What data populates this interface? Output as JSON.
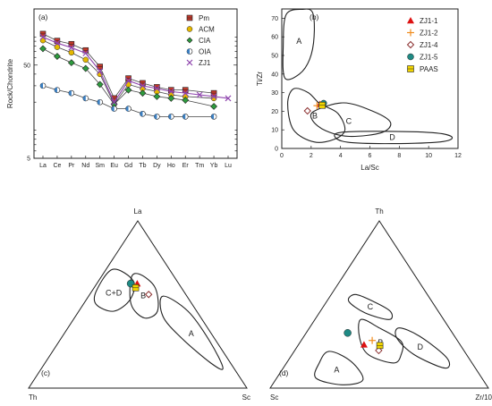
{
  "chart_data": [
    {
      "panel": "(a)",
      "type": "line",
      "ylabel": "Rock/Chondrite",
      "y_scale": "log",
      "ylim": [
        5,
        200
      ],
      "y_ticks": [
        "5",
        "50"
      ],
      "categories": [
        "La",
        "Ce",
        "Pr",
        "Nd",
        "Sm",
        "Eu",
        "Gd",
        "Tb",
        "Dy",
        "Ho",
        "Er",
        "Tm",
        "Yb",
        "Lu"
      ],
      "grid": false,
      "legend_position": "top-right",
      "series": [
        {
          "name": "Pm",
          "color": "#c0392b",
          "marker": "square",
          "values": [
            108,
            91,
            84,
            72,
            48,
            22,
            36,
            32,
            29,
            27,
            27,
            null,
            25,
            null
          ]
        },
        {
          "name": "ACM",
          "color": "#e5b800",
          "marker": "circle",
          "values": [
            92,
            78,
            68,
            57,
            40,
            19,
            31,
            28,
            26,
            24,
            23,
            null,
            22,
            null
          ]
        },
        {
          "name": "CIA",
          "color": "#2e9b3e",
          "marker": "diamond",
          "values": [
            75,
            62,
            53,
            46,
            31,
            19,
            27,
            25,
            23,
            22,
            21,
            null,
            18,
            null
          ]
        },
        {
          "name": "OIA",
          "color": "#3a7fc2",
          "marker": "circle-half",
          "values": [
            30,
            27,
            25,
            22,
            20,
            17,
            17,
            15,
            14,
            14,
            14,
            null,
            14,
            null
          ]
        },
        {
          "name": "ZJ1",
          "color": "#8e44ad",
          "marker": "cross",
          "values": [
            100,
            86,
            77,
            67,
            43,
            20,
            34,
            30,
            28,
            26,
            25,
            24,
            23,
            22
          ]
        }
      ]
    },
    {
      "panel": "(b)",
      "type": "scatter",
      "xlabel": "La/Sc",
      "ylabel": "Ti/Zr",
      "xlim": [
        0,
        12
      ],
      "ylim": [
        0,
        75
      ],
      "x_ticks": [
        0,
        2,
        4,
        6,
        8,
        10,
        12
      ],
      "y_ticks": [
        0,
        10,
        20,
        30,
        40,
        50,
        60,
        70
      ],
      "legend_position": "top-right",
      "fields": [
        {
          "label": "A",
          "polygon": [
            [
              0.2,
              38
            ],
            [
              0.1,
              55
            ],
            [
              0.3,
              72
            ],
            [
              1.4,
              74.8
            ],
            [
              2.1,
              73
            ],
            [
              2.2,
              60
            ],
            [
              1.9,
              48
            ],
            [
              1.2,
              40
            ]
          ]
        },
        {
          "label": "B",
          "polygon": [
            [
              0.8,
              32
            ],
            [
              0.4,
              24
            ],
            [
              0.8,
              10
            ],
            [
              2.2,
              3.5
            ],
            [
              3.6,
              5
            ],
            [
              4.3,
              10
            ],
            [
              3.8,
              19
            ],
            [
              2.6,
              24
            ],
            [
              1.8,
              30
            ]
          ]
        },
        {
          "label": "C",
          "polygon": [
            [
              2.2,
              20
            ],
            [
              4.2,
              24.5
            ],
            [
              6.2,
              20
            ],
            [
              7.4,
              14
            ],
            [
              6.8,
              8.5
            ],
            [
              4.6,
              6.5
            ],
            [
              3.0,
              9.5
            ],
            [
              2.1,
              15
            ]
          ]
        },
        {
          "label": "D",
          "polygon": [
            [
              3.6,
              6.5
            ],
            [
              4.2,
              8.8
            ],
            [
              7.5,
              9.2
            ],
            [
              10.5,
              8.3
            ],
            [
              11.6,
              6.0
            ],
            [
              10.8,
              3.5
            ],
            [
              7.5,
              2.6
            ],
            [
              4.5,
              3.3
            ]
          ]
        }
      ],
      "series": [
        {
          "name": "ZJ1-1",
          "color": "#dd1111",
          "marker": "triangle",
          "points": [
            [
              2.6,
              23.8
            ]
          ]
        },
        {
          "name": "ZJ1-2",
          "color": "#f08c1e",
          "marker": "plus",
          "points": [
            [
              2.4,
              23.0
            ]
          ]
        },
        {
          "name": "ZJ1-4",
          "color": "#8b3030",
          "marker": "diamond-open",
          "points": [
            [
              1.75,
              20.2
            ]
          ]
        },
        {
          "name": "ZJ1-5",
          "color": "#1f8a84",
          "marker": "circle",
          "points": [
            [
              2.85,
              24.3
            ]
          ]
        },
        {
          "name": "PAAS",
          "color": "#f2d500",
          "marker": "square",
          "points": [
            [
              2.75,
              23.2
            ]
          ]
        }
      ]
    },
    {
      "panel": "(c)",
      "type": "ternary",
      "apex_labels": {
        "top": "La",
        "left": "Th",
        "right": "Sc"
      },
      "fields": [
        {
          "label": "C+D",
          "polygon": [
            [
              0.71,
              0.26,
              0.03
            ],
            [
              0.58,
              0.4,
              0.02
            ],
            [
              0.5,
              0.44,
              0.06
            ],
            [
              0.46,
              0.38,
              0.16
            ],
            [
              0.53,
              0.27,
              0.2
            ],
            [
              0.64,
              0.2,
              0.16
            ]
          ]
        },
        {
          "label": "B",
          "polygon": [
            [
              0.66,
              0.2,
              0.14
            ],
            [
              0.5,
              0.28,
              0.22
            ],
            [
              0.42,
              0.26,
              0.32
            ],
            [
              0.46,
              0.18,
              0.36
            ],
            [
              0.6,
              0.12,
              0.28
            ],
            [
              0.68,
              0.15,
              0.17
            ]
          ]
        },
        {
          "label": "A",
          "polygon": [
            [
              0.55,
              0.11,
              0.34
            ],
            [
              0.43,
              0.17,
              0.4
            ],
            [
              0.3,
              0.15,
              0.55
            ],
            [
              0.15,
              0.09,
              0.76
            ],
            [
              0.12,
              0.05,
              0.83
            ],
            [
              0.28,
              0.03,
              0.69
            ],
            [
              0.46,
              0.04,
              0.5
            ]
          ]
        }
      ],
      "series": [
        {
          "name": "ZJ1-1",
          "color": "#dd1111",
          "marker": "triangle",
          "points": [
            [
              0.625,
              0.19,
              0.185
            ]
          ]
        },
        {
          "name": "ZJ1-2",
          "color": "#f08c1e",
          "marker": "plus",
          "points": [
            [
              0.605,
              0.21,
              0.185
            ]
          ]
        },
        {
          "name": "ZJ1-4",
          "color": "#8b3030",
          "marker": "diamond-open",
          "points": [
            [
              0.56,
              0.17,
              0.27
            ]
          ]
        },
        {
          "name": "ZJ1-5",
          "color": "#1f8a84",
          "marker": "circle",
          "points": [
            [
              0.625,
              0.22,
              0.155
            ]
          ]
        },
        {
          "name": "PAAS",
          "color": "#f2d500",
          "marker": "square",
          "points": [
            [
              0.6,
              0.21,
              0.19
            ]
          ]
        }
      ]
    },
    {
      "panel": "(d)",
      "type": "ternary",
      "apex_labels": {
        "top": "Th",
        "left": "Sc",
        "right": "Zr/10"
      },
      "fields": [
        {
          "label": "C",
          "polygon": [
            [
              0.56,
              0.33,
              0.11
            ],
            [
              0.52,
              0.27,
              0.21
            ],
            [
              0.46,
              0.22,
              0.32
            ],
            [
              0.41,
              0.25,
              0.34
            ],
            [
              0.45,
              0.34,
              0.21
            ],
            [
              0.52,
              0.38,
              0.1
            ]
          ]
        },
        {
          "label": "B",
          "polygon": [
            [
              0.41,
              0.38,
              0.21
            ],
            [
              0.36,
              0.32,
              0.32
            ],
            [
              0.28,
              0.26,
              0.46
            ],
            [
              0.2,
              0.3,
              0.5
            ],
            [
              0.15,
              0.36,
              0.49
            ],
            [
              0.2,
              0.45,
              0.35
            ],
            [
              0.3,
              0.44,
              0.26
            ]
          ]
        },
        {
          "label": "D",
          "polygon": [
            [
              0.36,
              0.23,
              0.41
            ],
            [
              0.31,
              0.16,
              0.53
            ],
            [
              0.18,
              0.1,
              0.72
            ],
            [
              0.12,
              0.14,
              0.74
            ],
            [
              0.2,
              0.24,
              0.56
            ],
            [
              0.3,
              0.27,
              0.43
            ]
          ]
        },
        {
          "label": "A",
          "polygon": [
            [
              0.22,
              0.62,
              0.16
            ],
            [
              0.16,
              0.55,
              0.29
            ],
            [
              0.05,
              0.55,
              0.4
            ],
            [
              0.02,
              0.66,
              0.32
            ],
            [
              0.06,
              0.76,
              0.18
            ],
            [
              0.15,
              0.7,
              0.15
            ]
          ]
        }
      ],
      "series": [
        {
          "name": "ZJ1-1",
          "color": "#dd1111",
          "marker": "triangle",
          "points": [
            [
              0.26,
              0.44,
              0.3
            ]
          ]
        },
        {
          "name": "ZJ1-2",
          "color": "#f08c1e",
          "marker": "plus",
          "points": [
            [
              0.285,
              0.39,
              0.325
            ]
          ]
        },
        {
          "name": "ZJ1-4",
          "color": "#8b3030",
          "marker": "diamond-open",
          "points": [
            [
              0.225,
              0.39,
              0.385
            ]
          ]
        },
        {
          "name": "ZJ1-5",
          "color": "#1f8a84",
          "marker": "circle",
          "points": [
            [
              0.33,
              0.48,
              0.19
            ]
          ]
        },
        {
          "name": "PAAS",
          "color": "#f2d500",
          "marker": "square",
          "points": [
            [
              0.255,
              0.37,
              0.375
            ]
          ]
        }
      ]
    }
  ]
}
